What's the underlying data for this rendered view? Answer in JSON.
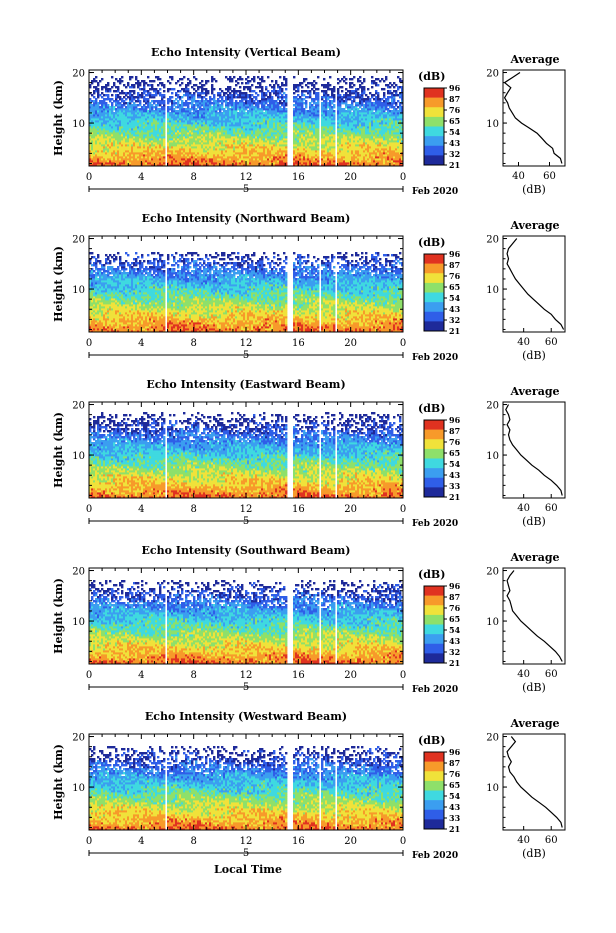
{
  "chart_data": [
    {
      "type": "heatmap",
      "title": "Echo Intensity (Vertical Beam)",
      "ylabel": "Height (km)",
      "x_ticks": [
        "0",
        "4",
        "8",
        "12",
        "16",
        "20",
        "0"
      ],
      "y_ticks": [
        "20",
        "10"
      ],
      "xlim": [
        0,
        24
      ],
      "ylim": [
        1.5,
        20.5
      ],
      "date_label": "5",
      "month_label": "Feb 2020",
      "colorbar_label": "(dB)",
      "colorbar_ticks": [
        "96",
        "87",
        "76",
        "65",
        "54",
        "43",
        "32",
        "21"
      ],
      "gaps_hours": [
        [
          5.8,
          6.0
        ],
        [
          15.2,
          15.6
        ],
        [
          17.6,
          17.8
        ],
        [
          18.8,
          19.0
        ]
      ],
      "echo_top_km": 19.5,
      "profile": {
        "title": "Average",
        "xlabel": "(dB)",
        "x_ticks": [
          "40",
          "60"
        ],
        "y_ticks": [
          "20",
          "10"
        ],
        "xlim": [
          30,
          70
        ],
        "ylim": [
          1.5,
          20.5
        ],
        "points": [
          [
            68,
            2
          ],
          [
            67,
            3
          ],
          [
            63,
            4
          ],
          [
            62,
            5
          ],
          [
            58,
            6
          ],
          [
            55,
            7
          ],
          [
            52,
            8
          ],
          [
            47,
            9
          ],
          [
            42,
            10
          ],
          [
            38,
            11
          ],
          [
            36,
            12
          ],
          [
            34,
            13
          ],
          [
            33,
            14
          ],
          [
            31,
            15
          ],
          [
            33,
            16
          ],
          [
            35,
            17
          ],
          [
            31,
            18
          ],
          [
            36,
            19
          ],
          [
            41,
            20
          ]
        ]
      }
    },
    {
      "type": "heatmap",
      "title": "Echo Intensity (Northward Beam)",
      "ylabel": "Height (km)",
      "x_ticks": [
        "0",
        "4",
        "8",
        "12",
        "16",
        "20",
        "0"
      ],
      "y_ticks": [
        "20",
        "10"
      ],
      "xlim": [
        0,
        24
      ],
      "ylim": [
        1.5,
        20.5
      ],
      "date_label": "5",
      "month_label": "Feb 2020",
      "colorbar_label": "(dB)",
      "colorbar_ticks": [
        "96",
        "87",
        "76",
        "65",
        "54",
        "43",
        "32",
        "21"
      ],
      "gaps_hours": [
        [
          5.8,
          6.0
        ],
        [
          15.2,
          15.6
        ],
        [
          17.6,
          17.8
        ],
        [
          18.8,
          19.0
        ]
      ],
      "echo_top_km": 17.5,
      "profile": {
        "title": "Average",
        "xlabel": "(dB)",
        "x_ticks": [
          "40",
          "60"
        ],
        "y_ticks": [
          "20",
          "10"
        ],
        "xlim": [
          25,
          70
        ],
        "ylim": [
          1.5,
          20.5
        ],
        "points": [
          [
            69,
            2
          ],
          [
            67,
            3
          ],
          [
            63,
            4
          ],
          [
            60,
            5
          ],
          [
            55,
            6
          ],
          [
            51,
            7
          ],
          [
            47,
            8
          ],
          [
            43,
            9
          ],
          [
            40,
            10
          ],
          [
            37,
            11
          ],
          [
            34,
            12
          ],
          [
            32,
            13
          ],
          [
            30,
            14
          ],
          [
            28,
            15
          ],
          [
            29,
            16
          ],
          [
            28,
            17
          ],
          [
            29,
            18
          ],
          [
            32,
            19
          ],
          [
            35,
            20
          ]
        ]
      }
    },
    {
      "type": "heatmap",
      "title": "Echo Intensity (Eastward Beam)",
      "ylabel": "Height (km)",
      "x_ticks": [
        "0",
        "4",
        "8",
        "12",
        "16",
        "20",
        "0"
      ],
      "y_ticks": [
        "20",
        "10"
      ],
      "xlim": [
        0,
        24
      ],
      "ylim": [
        1.5,
        20.5
      ],
      "date_label": "5",
      "month_label": "Feb 2020",
      "colorbar_label": "(dB)",
      "colorbar_ticks": [
        "96",
        "87",
        "76",
        "65",
        "54",
        "43",
        "33",
        "21"
      ],
      "gaps_hours": [
        [
          5.8,
          6.0
        ],
        [
          15.2,
          15.6
        ],
        [
          17.6,
          17.8
        ],
        [
          18.8,
          19.0
        ]
      ],
      "echo_top_km": 18.5,
      "profile": {
        "title": "Average",
        "xlabel": "(dB)",
        "x_ticks": [
          "40",
          "60"
        ],
        "y_ticks": [
          "20",
          "10"
        ],
        "xlim": [
          25,
          70
        ],
        "ylim": [
          1.5,
          20.5
        ],
        "points": [
          [
            68,
            2
          ],
          [
            67,
            3
          ],
          [
            64,
            4
          ],
          [
            60,
            5
          ],
          [
            55,
            6
          ],
          [
            51,
            7
          ],
          [
            46,
            8
          ],
          [
            42,
            9
          ],
          [
            38,
            10
          ],
          [
            35,
            11
          ],
          [
            32,
            12
          ],
          [
            30,
            13
          ],
          [
            29,
            14
          ],
          [
            30,
            15
          ],
          [
            28,
            16
          ],
          [
            30,
            17
          ],
          [
            29,
            18
          ],
          [
            27,
            19
          ],
          [
            29,
            20
          ]
        ]
      }
    },
    {
      "type": "heatmap",
      "title": "Echo Intensity (Southward Beam)",
      "ylabel": "Height (km)",
      "x_ticks": [
        "0",
        "4",
        "8",
        "12",
        "16",
        "20",
        "0"
      ],
      "y_ticks": [
        "20",
        "10"
      ],
      "xlim": [
        0,
        24
      ],
      "ylim": [
        1.5,
        20.5
      ],
      "date_label": "5",
      "month_label": "Feb 2020",
      "colorbar_label": "(dB)",
      "colorbar_ticks": [
        "96",
        "87",
        "76",
        "65",
        "54",
        "43",
        "32",
        "21"
      ],
      "gaps_hours": [
        [
          5.8,
          6.0
        ],
        [
          15.2,
          15.6
        ],
        [
          17.6,
          17.8
        ],
        [
          18.8,
          19.0
        ]
      ],
      "echo_top_km": 18.0,
      "profile": {
        "title": "Average",
        "xlabel": "(dB)",
        "x_ticks": [
          "40",
          "60"
        ],
        "y_ticks": [
          "20",
          "10"
        ],
        "xlim": [
          25,
          70
        ],
        "ylim": [
          1.5,
          20.5
        ],
        "points": [
          [
            68,
            2
          ],
          [
            66,
            3
          ],
          [
            63,
            4
          ],
          [
            59,
            5
          ],
          [
            55,
            6
          ],
          [
            50,
            7
          ],
          [
            46,
            8
          ],
          [
            42,
            9
          ],
          [
            38,
            10
          ],
          [
            35,
            11
          ],
          [
            32,
            12
          ],
          [
            31,
            13
          ],
          [
            30,
            14
          ],
          [
            28,
            15
          ],
          [
            30,
            16
          ],
          [
            29,
            17
          ],
          [
            28,
            18
          ],
          [
            30,
            19
          ],
          [
            33,
            20
          ]
        ]
      }
    },
    {
      "type": "heatmap",
      "title": "Echo Intensity (Westward Beam)",
      "ylabel": "Height (km)",
      "x_ticks": [
        "0",
        "4",
        "8",
        "12",
        "16",
        "20",
        "0"
      ],
      "y_ticks": [
        "20",
        "10"
      ],
      "xlim": [
        0,
        24
      ],
      "ylim": [
        1.5,
        20.5
      ],
      "date_label": "5",
      "month_label": "Feb 2020",
      "xlabel": "Local Time",
      "colorbar_label": "(dB)",
      "colorbar_ticks": [
        "96",
        "87",
        "76",
        "65",
        "54",
        "43",
        "33",
        "21"
      ],
      "gaps_hours": [
        [
          5.8,
          6.0
        ],
        [
          15.2,
          15.6
        ],
        [
          17.6,
          17.8
        ],
        [
          18.8,
          19.0
        ]
      ],
      "echo_top_km": 18.0,
      "profile": {
        "title": "Average",
        "xlabel": "(dB)",
        "x_ticks": [
          "40",
          "60"
        ],
        "y_ticks": [
          "20",
          "10"
        ],
        "xlim": [
          25,
          70
        ],
        "ylim": [
          1.5,
          20.5
        ],
        "points": [
          [
            68,
            2
          ],
          [
            67,
            3
          ],
          [
            64,
            4
          ],
          [
            60,
            5
          ],
          [
            56,
            6
          ],
          [
            51,
            7
          ],
          [
            46,
            8
          ],
          [
            42,
            9
          ],
          [
            38,
            10
          ],
          [
            35,
            11
          ],
          [
            33,
            12
          ],
          [
            30,
            13
          ],
          [
            29,
            14
          ],
          [
            31,
            15
          ],
          [
            29,
            16
          ],
          [
            28,
            17
          ],
          [
            31,
            18
          ],
          [
            34,
            19
          ],
          [
            31,
            20
          ]
        ]
      }
    }
  ],
  "colors": {
    "colormap": [
      "#1e2a9a",
      "#2f5ee8",
      "#3b9ef0",
      "#3fd9e0",
      "#8ee06a",
      "#f0e23a",
      "#f79a2a",
      "#e03220"
    ]
  }
}
